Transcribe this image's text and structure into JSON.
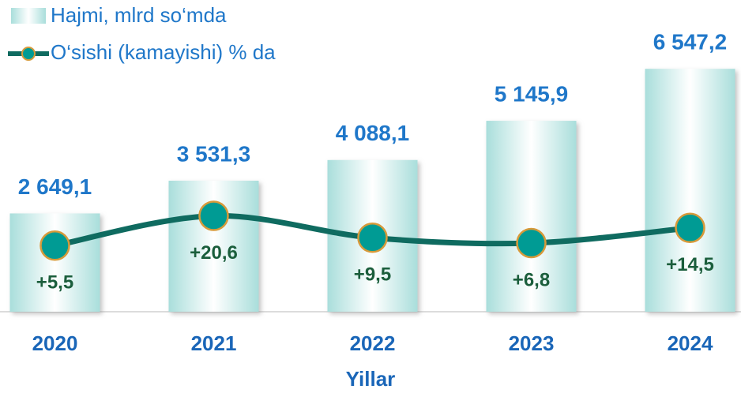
{
  "chart_data": {
    "type": "bar_line",
    "x_label": "Yillar",
    "categories": [
      "2020",
      "2021",
      "2022",
      "2023",
      "2024"
    ],
    "series": [
      {
        "name": "Hajmi, mlrd so‘mda",
        "type": "bar",
        "color": "#bfe8e6",
        "values": [
          2649.1,
          3531.3,
          4088.1,
          5145.9,
          6547.2
        ],
        "value_labels": [
          "2 649,1",
          "3 531,3",
          "4 088,1",
          "5 145,9",
          "6 547,2"
        ]
      },
      {
        "name": "O‘sishi (kamayishi) % da",
        "type": "line",
        "axis": "y2",
        "color": "#0f6b60",
        "marker_color": "#009b94",
        "values": [
          5.5,
          20.6,
          9.5,
          6.8,
          14.5
        ],
        "value_labels": [
          "+5,5",
          "+20,6",
          "+9,5",
          "+6,8",
          "+14,5"
        ]
      }
    ],
    "ylim": [
      0,
      6700
    ],
    "y2lim": [
      -28,
      98
    ],
    "legend": "top-left"
  }
}
